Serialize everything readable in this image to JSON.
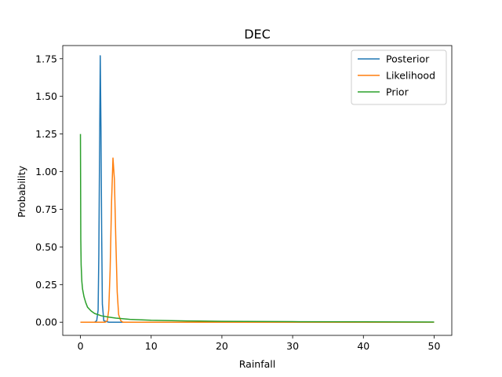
{
  "chart_data": {
    "type": "line",
    "title": "DEC",
    "xlabel": "Rainfall",
    "ylabel": "Probability",
    "xlim": [
      -2.5,
      52.5
    ],
    "ylim": [
      -0.0875,
      1.8375
    ],
    "xticks": [
      0,
      10,
      20,
      30,
      40,
      50
    ],
    "yticks": [
      0.0,
      0.25,
      0.5,
      0.75,
      1.0,
      1.25,
      1.5,
      1.75
    ],
    "grid": false,
    "legend_position": "top-right",
    "series": [
      {
        "name": "Posterior",
        "color": "#1f77b4",
        "points": [
          [
            0,
            0
          ],
          [
            2.0,
            0
          ],
          [
            2.3,
            0.01
          ],
          [
            2.5,
            0.08
          ],
          [
            2.6,
            0.45
          ],
          [
            2.7,
            1.1
          ],
          [
            2.8,
            1.77
          ],
          [
            2.9,
            1.3
          ],
          [
            3.0,
            0.6
          ],
          [
            3.1,
            0.12
          ],
          [
            3.3,
            0.01
          ],
          [
            4.0,
            0
          ],
          [
            50,
            0
          ]
        ]
      },
      {
        "name": "Likelihood",
        "color": "#ff7f0e",
        "points": [
          [
            0,
            0
          ],
          [
            3.5,
            0
          ],
          [
            3.8,
            0.01
          ],
          [
            4.0,
            0.08
          ],
          [
            4.2,
            0.35
          ],
          [
            4.4,
            0.8
          ],
          [
            4.6,
            1.09
          ],
          [
            4.8,
            0.95
          ],
          [
            5.0,
            0.55
          ],
          [
            5.2,
            0.2
          ],
          [
            5.4,
            0.05
          ],
          [
            5.7,
            0.01
          ],
          [
            6.0,
            0
          ],
          [
            50,
            0
          ]
        ]
      },
      {
        "name": "Prior",
        "color": "#2ca02c",
        "points": [
          [
            0.0,
            1.25
          ],
          [
            0.05,
            0.55
          ],
          [
            0.1,
            0.38
          ],
          [
            0.2,
            0.27
          ],
          [
            0.3,
            0.22
          ],
          [
            0.5,
            0.17
          ],
          [
            0.75,
            0.13
          ],
          [
            1.0,
            0.1
          ],
          [
            1.5,
            0.075
          ],
          [
            2.0,
            0.058
          ],
          [
            3.0,
            0.042
          ],
          [
            4.0,
            0.034
          ],
          [
            5.0,
            0.027
          ],
          [
            7.0,
            0.019
          ],
          [
            10.0,
            0.013
          ],
          [
            15.0,
            0.0085
          ],
          [
            20.0,
            0.006
          ],
          [
            30.0,
            0.0035
          ],
          [
            40.0,
            0.0022
          ],
          [
            50.0,
            0.0015
          ]
        ]
      }
    ]
  }
}
